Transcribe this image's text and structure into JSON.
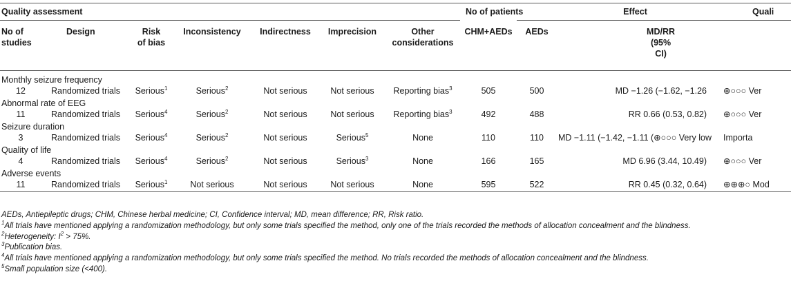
{
  "header": {
    "group_quality": "Quality assessment",
    "group_patients": "No of patients",
    "group_effect": "Effect",
    "group_quality_right": "Quali",
    "col_no": "No of",
    "col_no2": "studies",
    "col_design": "Design",
    "col_risk": "Risk",
    "col_risk2": "of bias",
    "col_inconsistency": "Inconsistency",
    "col_indirectness": "Indirectness",
    "col_imprecision": "Imprecision",
    "col_other": "Other",
    "col_other2": "considerations",
    "col_chm": "CHM+AEDs",
    "col_aeds": "AEDs",
    "col_md": "MD/RR",
    "col_md2": "(95%",
    "col_md3": "CI)"
  },
  "outcomes": [
    {
      "name": "Monthly seizure frequency",
      "n": "12",
      "design": "Randomized trials",
      "risk": "Serious",
      "risk_sup": "1",
      "incons": "Serious",
      "incons_sup": "2",
      "indirect": "Not serious",
      "imprec": "Not serious",
      "imprec_sup": "",
      "other": "Reporting bias",
      "other_sup": "3",
      "chm": "505",
      "aeds": "500",
      "effect": "MD −1.26 (−1.62, −1.26",
      "quality": "⊕○○○ Ver"
    },
    {
      "name": "Abnormal rate of EEG",
      "n": "11",
      "design": "Randomized trials",
      "risk": "Serious",
      "risk_sup": "4",
      "incons": "Serious",
      "incons_sup": "2",
      "indirect": "Not serious",
      "imprec": "Not serious",
      "imprec_sup": "",
      "other": "Reporting bias",
      "other_sup": "3",
      "chm": "492",
      "aeds": "488",
      "effect": "RR 0.66 (0.53, 0.82)",
      "quality": "⊕○○○ Ver"
    },
    {
      "name": "Seizure duration",
      "n": "3",
      "design": "Randomized trials",
      "risk": "Serious",
      "risk_sup": "4",
      "incons": "Serious",
      "incons_sup": "2",
      "indirect": "Not serious",
      "imprec": "Serious",
      "imprec_sup": "5",
      "other": "None",
      "other_sup": "",
      "chm": "110",
      "aeds": "110",
      "effect": "MD −1.11 (−1.42, −1.11 (⊕○○○ Very low",
      "quality": "Importa"
    },
    {
      "name": "Quality of life",
      "n": "4",
      "design": "Randomized trials",
      "risk": "Serious",
      "risk_sup": "4",
      "incons": "Serious",
      "incons_sup": "2",
      "indirect": "Not serious",
      "imprec": "Serious",
      "imprec_sup": "3",
      "other": "None",
      "other_sup": "",
      "chm": "166",
      "aeds": "165",
      "effect": "MD 6.96 (3.44, 10.49)",
      "quality": "⊕○○○ Ver"
    },
    {
      "name": "Adverse events",
      "n": "11",
      "design": "Randomized trials",
      "risk": "Serious",
      "risk_sup": "1",
      "incons": "Not serious",
      "incons_sup": "",
      "indirect": "Not serious",
      "imprec": "Not serious",
      "imprec_sup": "",
      "other": "None",
      "other_sup": "",
      "chm": "595",
      "aeds": "522",
      "effect": "RR 0.45 (0.32, 0.64)",
      "quality": "⊕⊕⊕○ Mod"
    }
  ],
  "footnotes": {
    "abbrev": "AEDs, Antiepileptic drugs; CHM, Chinese herbal medicine; CI, Confidence interval; MD, mean difference; RR, Risk ratio.",
    "n1_mark": "1",
    "n1": "All trials have mentioned applying a randomization methodology, but only some trials specified the method, only one of the trials recorded the methods of allocation concealment and the blindness.",
    "n2_mark": "2",
    "n2_pre": "Heterogeneity: I",
    "n2_sup": "2",
    "n2_post": " > 75%.",
    "n3_mark": "3",
    "n3": "Publication bias.",
    "n4_mark": "4",
    "n4": "All trials have mentioned applying a randomization methodology, but only some trials specified the method. No trials recorded the methods of allocation concealment and the blindness.",
    "n5_mark": "5",
    "n5": "Small population size (<400)."
  }
}
